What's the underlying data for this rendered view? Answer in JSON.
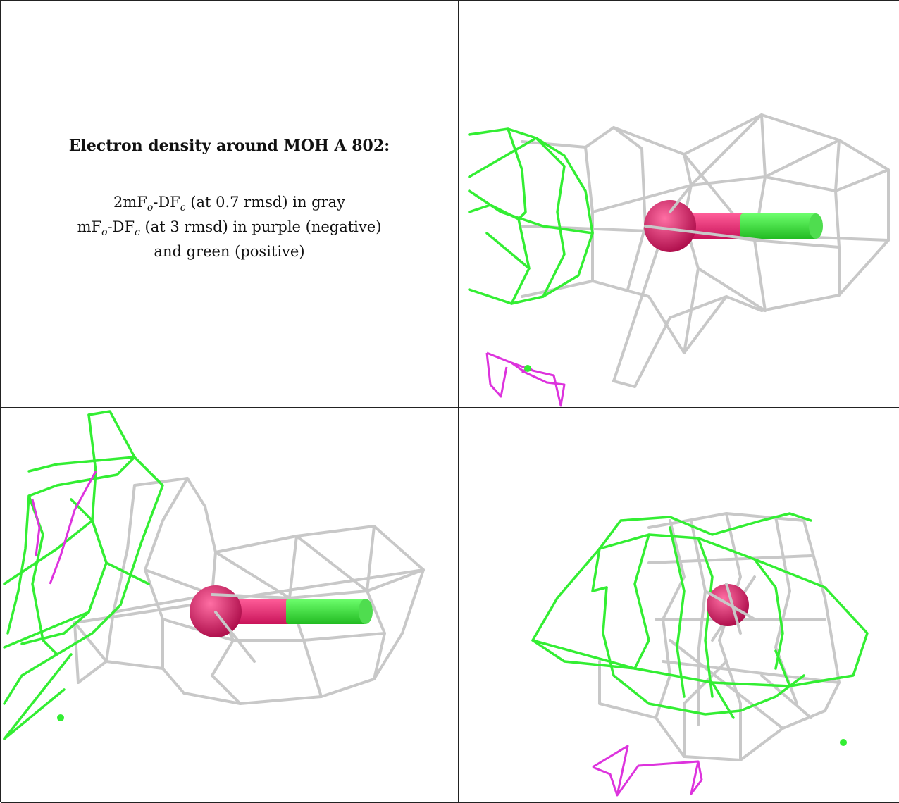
{
  "caption": {
    "title": "Electron density around MOH A 802:",
    "line1": {
      "pre": "2mF",
      "sub1": "o",
      "mid": "-DF",
      "sub2": "c",
      "post": " (at 0.7 rmsd) in gray"
    },
    "line2": {
      "pre": "mF",
      "sub1": "o",
      "mid": "-DF",
      "sub2": "c",
      "post": " (at 3 rmsd) in purple (negative)"
    },
    "line3": "and green (positive)"
  },
  "colors": {
    "map_2fofc": "#c8c8c8",
    "map_fofc_positive": "#33ee33",
    "map_fofc_negative": "#dd33dd",
    "atom_oxygen": "#e8246e",
    "atom_carbon": "#33ee33"
  }
}
